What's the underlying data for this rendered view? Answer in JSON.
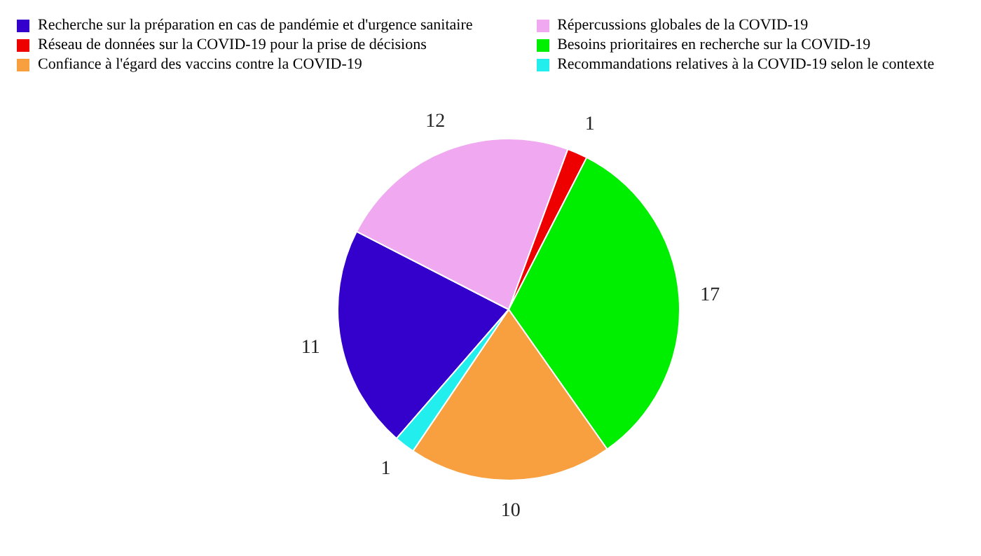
{
  "chart_data": {
    "type": "pie",
    "categories": [
      "Recherche sur la préparation en cas de pandémie et d'urgence sanitaire",
      "Répercussions globales de la COVID-19",
      "Réseau de données sur la COVID-19 pour la prise de décisions",
      "Besoins prioritaires en recherche sur la COVID-19",
      "Confiance à l'égard des vaccins contre la COVID-19",
      "Recommandations relatives à la COVID-19 selon le contexte"
    ],
    "values": [
      11,
      12,
      1,
      17,
      10,
      1
    ],
    "colors": [
      "#3300cc",
      "#f0a8f0",
      "#ee0000",
      "#00ee00",
      "#f8a040",
      "#22eeee"
    ],
    "data_labels": true,
    "legend": "top"
  }
}
